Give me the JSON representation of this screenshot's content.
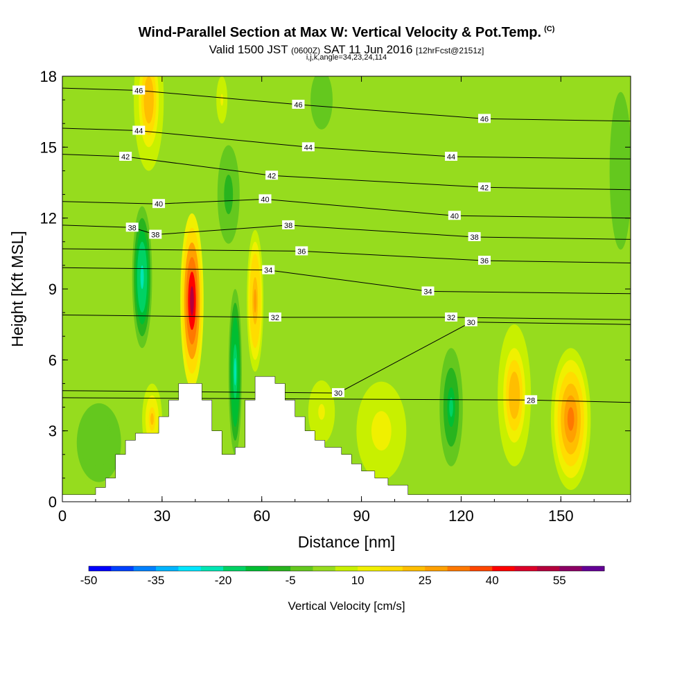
{
  "title": {
    "main": "Wind-Parallel Section at Max W: Vertical Velocity & Pot.Temp.",
    "copyright": "(C)",
    "valid_prefix": "Valid 1500 JST",
    "valid_utc": "(0600Z)",
    "valid_date": "SAT 11 Jun 2016",
    "forecast": "[12hrFcst@2151z]",
    "indices": "i,j,k,angle=34,23,24,114"
  },
  "chart_data": {
    "type": "heatmap",
    "xlabel": "Distance [nm]",
    "ylabel": "Height [Kft MSL]",
    "xlim": [
      0,
      171
    ],
    "ylim": [
      0,
      18
    ],
    "x_ticks": [
      "0",
      "30",
      "60",
      "90",
      "120",
      "150"
    ],
    "y_ticks": [
      "0",
      "3",
      "6",
      "9",
      "12",
      "15",
      "18"
    ],
    "colorbar": {
      "label": "Vertical Velocity [cm/s]",
      "range": [
        -50,
        65
      ],
      "step": 5,
      "tick_labels": [
        "-50",
        "-35",
        "-20",
        "-5",
        "10",
        "25",
        "40",
        "55"
      ],
      "colors": [
        "#0000ff",
        "#0040ff",
        "#0080ff",
        "#00b4ff",
        "#00e6ff",
        "#00e6b4",
        "#00d264",
        "#00be32",
        "#28b41e",
        "#64c81e",
        "#96dc1e",
        "#c8f000",
        "#f0f000",
        "#ffdc00",
        "#ffbe00",
        "#ffa000",
        "#ff7800",
        "#ff4600",
        "#ff0000",
        "#dc0028",
        "#b4003c",
        "#8c0064",
        "#640096"
      ]
    },
    "background_field": {
      "value_cm_s": 2
    },
    "updraft_cells": [
      {
        "x": 39,
        "y": 8.5,
        "rx": 3.5,
        "ry": 3.7,
        "peak": 58
      },
      {
        "x": 26,
        "y": 17.0,
        "rx": 4.5,
        "ry": 3.0,
        "peak": 28
      },
      {
        "x": 48,
        "y": 17.0,
        "rx": 2.5,
        "ry": 1.5,
        "peak": 12
      },
      {
        "x": 58,
        "y": 8.5,
        "rx": 2.5,
        "ry": 3.0,
        "peak": 32
      },
      {
        "x": 96,
        "y": 3.0,
        "rx": 9.0,
        "ry": 2.5,
        "peak": 14
      },
      {
        "x": 78,
        "y": 3.8,
        "rx": 6.0,
        "ry": 2.0,
        "peak": 12
      },
      {
        "x": 136,
        "y": 4.5,
        "rx": 5.0,
        "ry": 3.0,
        "peak": 28
      },
      {
        "x": 153,
        "y": 3.5,
        "rx": 6.0,
        "ry": 3.0,
        "peak": 40
      },
      {
        "x": 27,
        "y": 3.5,
        "rx": 3.0,
        "ry": 1.5,
        "peak": 24
      }
    ],
    "downdraft_cells": [
      {
        "x": 24,
        "y": 9.5,
        "rx": 3.0,
        "ry": 3.0,
        "peak": -28
      },
      {
        "x": 52,
        "y": 5.5,
        "rx": 2.0,
        "ry": 3.5,
        "peak": -26
      },
      {
        "x": 117,
        "y": 4.0,
        "rx": 3.5,
        "ry": 2.5,
        "peak": -18
      },
      {
        "x": 50,
        "y": 13.0,
        "rx": 4.0,
        "ry": 2.5,
        "peak": -8
      },
      {
        "x": 78,
        "y": 17.0,
        "rx": 4.0,
        "ry": 1.5,
        "peak": -5
      },
      {
        "x": 168,
        "y": 14.0,
        "rx": 4.0,
        "ry": 4.0,
        "peak": -6
      },
      {
        "x": 11,
        "y": 2.5,
        "rx": 8.0,
        "ry": 2.0,
        "peak": -6
      }
    ],
    "terrain_profile": [
      [
        0,
        0.3
      ],
      [
        10,
        0.3
      ],
      [
        10,
        0.6
      ],
      [
        13,
        0.6
      ],
      [
        13,
        1.0
      ],
      [
        16,
        1.0
      ],
      [
        16,
        2.0
      ],
      [
        19,
        2.0
      ],
      [
        19,
        2.6
      ],
      [
        22,
        2.6
      ],
      [
        22,
        2.9
      ],
      [
        29,
        2.9
      ],
      [
        29,
        3.6
      ],
      [
        32,
        3.6
      ],
      [
        32,
        4.3
      ],
      [
        35,
        4.3
      ],
      [
        35,
        5.0
      ],
      [
        42,
        5.0
      ],
      [
        42,
        4.3
      ],
      [
        45,
        4.3
      ],
      [
        45,
        3.0
      ],
      [
        48,
        3.0
      ],
      [
        48,
        2.0
      ],
      [
        52,
        2.0
      ],
      [
        52,
        2.3
      ],
      [
        55,
        2.3
      ],
      [
        55,
        4.3
      ],
      [
        58,
        4.3
      ],
      [
        58,
        5.3
      ],
      [
        64,
        5.3
      ],
      [
        64,
        5.0
      ],
      [
        67,
        5.0
      ],
      [
        67,
        4.3
      ],
      [
        70,
        4.3
      ],
      [
        70,
        3.6
      ],
      [
        73,
        3.6
      ],
      [
        73,
        3.0
      ],
      [
        76,
        3.0
      ],
      [
        76,
        2.6
      ],
      [
        79,
        2.6
      ],
      [
        79,
        2.3
      ],
      [
        84,
        2.3
      ],
      [
        84,
        2.0
      ],
      [
        87,
        2.0
      ],
      [
        87,
        1.6
      ],
      [
        90,
        1.6
      ],
      [
        90,
        1.3
      ],
      [
        94,
        1.3
      ],
      [
        94,
        1.0
      ],
      [
        98,
        1.0
      ],
      [
        98,
        0.7
      ],
      [
        104,
        0.7
      ],
      [
        104,
        0.3
      ],
      [
        171,
        0.3
      ]
    ],
    "theta_contour_labels": [
      {
        "text": "46",
        "x": 23,
        "y": 17.4
      },
      {
        "text": "46",
        "x": 71,
        "y": 16.8
      },
      {
        "text": "46",
        "x": 127,
        "y": 16.2
      },
      {
        "text": "44",
        "x": 23,
        "y": 15.7
      },
      {
        "text": "44",
        "x": 74,
        "y": 15.0
      },
      {
        "text": "44",
        "x": 117,
        "y": 14.6
      },
      {
        "text": "42",
        "x": 19,
        "y": 14.6
      },
      {
        "text": "42",
        "x": 63,
        "y": 13.8
      },
      {
        "text": "42",
        "x": 127,
        "y": 13.3
      },
      {
        "text": "40",
        "x": 29,
        "y": 12.6
      },
      {
        "text": "40",
        "x": 61,
        "y": 12.8
      },
      {
        "text": "40",
        "x": 118,
        "y": 12.1
      },
      {
        "text": "38",
        "x": 21,
        "y": 11.6
      },
      {
        "text": "38",
        "x": 68,
        "y": 11.7
      },
      {
        "text": "38",
        "x": 124,
        "y": 11.2
      },
      {
        "text": "38",
        "x": 28,
        "y": 11.3
      },
      {
        "text": "36",
        "x": 72,
        "y": 10.6
      },
      {
        "text": "36",
        "x": 127,
        "y": 10.2
      },
      {
        "text": "34",
        "x": 62,
        "y": 9.8
      },
      {
        "text": "34",
        "x": 110,
        "y": 8.9
      },
      {
        "text": "32",
        "x": 64,
        "y": 7.8
      },
      {
        "text": "32",
        "x": 117,
        "y": 7.8
      },
      {
        "text": "30",
        "x": 123,
        "y": 7.6
      },
      {
        "text": "30",
        "x": 83,
        "y": 4.6
      },
      {
        "text": "28",
        "x": 141,
        "y": 4.3
      }
    ]
  }
}
